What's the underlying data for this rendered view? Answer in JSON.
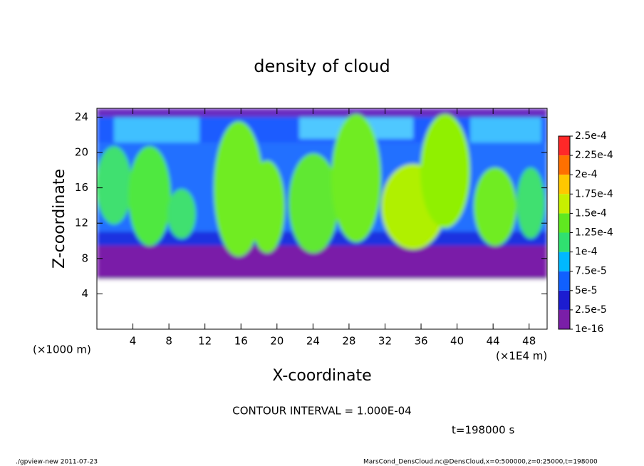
{
  "chart_data": {
    "type": "heatmap",
    "title": "density of cloud",
    "x_label": "X-coordinate",
    "y_label": "Z-coordinate",
    "y_unit": "(×1000 m)",
    "x_unit": "(×1E4 m)",
    "xlim": [
      0,
      50
    ],
    "xticks": [
      4,
      8,
      12,
      16,
      20,
      24,
      28,
      32,
      36,
      40,
      44,
      48
    ],
    "ylim": [
      0,
      25
    ],
    "yticks": [
      4,
      8,
      12,
      16,
      20,
      24
    ],
    "colorbar_ticks": [
      {
        "value": 1e-16,
        "label": "1e-16"
      },
      {
        "value": 2.5e-05,
        "label": "2.5e-5"
      },
      {
        "value": 5e-05,
        "label": "5e-5"
      },
      {
        "value": 7.5e-05,
        "label": "7.5e-5"
      },
      {
        "value": 0.0001,
        "label": "1e-4"
      },
      {
        "value": 0.000125,
        "label": "1.25e-4"
      },
      {
        "value": 0.00015,
        "label": "1.5e-4"
      },
      {
        "value": 0.000175,
        "label": "1.75e-4"
      },
      {
        "value": 0.0002,
        "label": "2e-4"
      },
      {
        "value": 0.000225,
        "label": "2.25e-4"
      },
      {
        "value": 0.00025,
        "label": "2.5e-4"
      }
    ],
    "colorbar_colors": [
      "#7a1ea8",
      "#1c1cd0",
      "#1060ff",
      "#00b8ff",
      "#30e070",
      "#60e820",
      "#c8f000",
      "#ffc800",
      "#ff7000",
      "#ff2828"
    ],
    "contour_note": "CONTOUR INTERVAL = 1.000E-04",
    "time_note": "t=198000 s",
    "footer_left": "./gpview-new  2011-07-23",
    "footer_right": "MarsCond_DensCloud.nc@DensCloud,x=0:500000,z=0:25000,t=198000"
  }
}
